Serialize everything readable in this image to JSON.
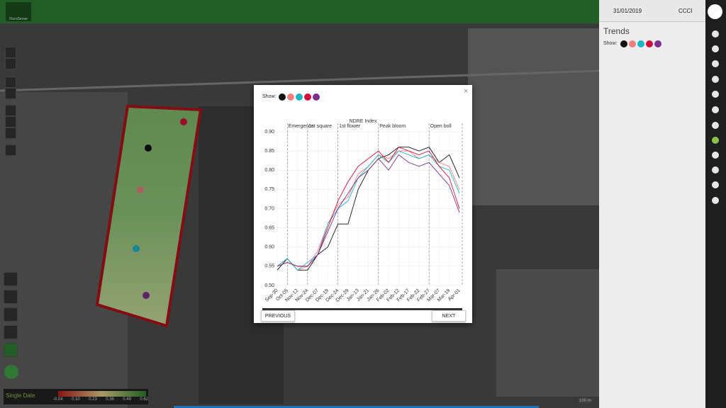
{
  "header": {
    "logo_text": "FluroSense"
  },
  "side_panel": {
    "date": "31/01/2019",
    "index": "CCCI",
    "title": "Trends",
    "show_label": "Show:"
  },
  "modal": {
    "show_label": "Show:",
    "previous": "PREVIOUS",
    "next": "NEXT",
    "chart_data": {
      "type": "line",
      "title": "NDRE Index",
      "categories": [
        "Sep-30",
        "Oct-05",
        "Nov-12",
        "Nov-24",
        "Dec-07",
        "Dec-19",
        "Dec-24",
        "Dec-29",
        "Jan-13",
        "Jan-21",
        "Jan-26",
        "Feb-02",
        "Feb-12",
        "Feb-17",
        "Feb-22",
        "Feb-27",
        "Mar-07",
        "Mar-19",
        "Apr-01"
      ],
      "series": [
        {
          "color": "#111111",
          "values": [
            0.54,
            0.57,
            0.54,
            0.54,
            0.58,
            0.6,
            0.66,
            0.66,
            0.75,
            0.8,
            0.83,
            0.84,
            0.86,
            0.86,
            0.85,
            0.86,
            0.82,
            0.84,
            0.78
          ]
        },
        {
          "color": "#f08080",
          "values": [
            0.55,
            0.57,
            0.54,
            0.55,
            0.59,
            0.66,
            0.71,
            0.73,
            0.79,
            0.81,
            0.84,
            0.83,
            0.85,
            0.85,
            0.83,
            0.84,
            0.82,
            0.81,
            0.75
          ]
        },
        {
          "color": "#1fb5c4",
          "values": [
            0.55,
            0.57,
            0.54,
            0.56,
            0.58,
            0.66,
            0.7,
            0.72,
            0.78,
            0.81,
            0.84,
            0.82,
            0.85,
            0.84,
            0.83,
            0.84,
            0.81,
            0.8,
            0.74
          ]
        },
        {
          "color": "#d0103a",
          "values": [
            0.55,
            0.56,
            0.55,
            0.55,
            0.58,
            0.65,
            0.72,
            0.77,
            0.81,
            0.83,
            0.85,
            0.82,
            0.86,
            0.85,
            0.84,
            0.85,
            0.81,
            0.78,
            0.7
          ]
        },
        {
          "color": "#7b2f8f",
          "values": [
            0.55,
            0.56,
            0.55,
            0.55,
            0.58,
            0.64,
            0.7,
            0.74,
            0.78,
            0.8,
            0.83,
            0.8,
            0.84,
            0.82,
            0.81,
            0.82,
            0.79,
            0.76,
            0.69
          ]
        }
      ],
      "annotations": [
        {
          "label": "Emergence",
          "category": "Oct-05"
        },
        {
          "label": "1st square",
          "category": "Nov-24"
        },
        {
          "label": "1st flower",
          "category": "Dec-24"
        },
        {
          "label": "Peak bloom",
          "category": "Jan-26"
        },
        {
          "label": "Open boll",
          "category": "Feb-27"
        }
      ],
      "ylim": [
        0.5,
        0.9
      ],
      "yticks": [
        {
          "value": 0.5,
          "label": "0.50"
        },
        0.55,
        {
          "value": 0.6,
          "label": "0.60"
        },
        0.65,
        {
          "value": 0.7,
          "label": "0.70"
        },
        0.75,
        {
          "value": 0.8,
          "label": "0.80"
        },
        0.85,
        {
          "value": 0.9,
          "label": "0.90"
        }
      ],
      "grid": true
    }
  },
  "map_legend": {
    "mode": "Single Date",
    "ticks": [
      "-0.04",
      "0.10",
      "0.23",
      "0.36",
      "0.49",
      "0.62"
    ]
  },
  "scale": "100 m"
}
